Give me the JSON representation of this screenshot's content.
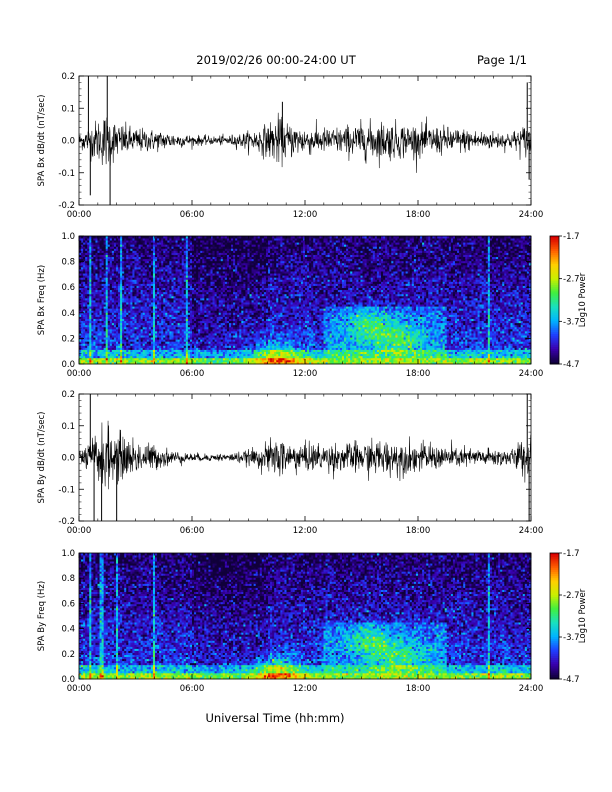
{
  "header": {
    "title": "2019/02/26  00:00-24:00 UT",
    "page": "Page 1/1"
  },
  "xlabel": "Universal Time (hh:mm)",
  "colors": {
    "trace": "#000000",
    "colormap": [
      "#10003a",
      "#3a00b0",
      "#1e40ff",
      "#00b4ff",
      "#18e0c0",
      "#40f040",
      "#c8f000",
      "#ffd000",
      "#ff6000",
      "#d80000"
    ]
  },
  "chart_data": [
    {
      "type": "line",
      "id": "bx-time-series",
      "ylabel": "SPA Bx dB/dt (nT/sec)",
      "xticks": [
        "00:00",
        "06:00",
        "12:00",
        "18:00",
        "24:00"
      ],
      "yticks": [
        "-0.2",
        "-0.1",
        "0.0",
        "0.1",
        "0.2"
      ],
      "xlim": [
        0,
        24
      ],
      "ylim": [
        -0.2,
        0.2
      ],
      "envelope": {
        "hours": [
          0,
          0.5,
          1,
          1.5,
          2,
          3,
          4,
          5,
          6,
          7,
          8,
          9,
          10,
          10.5,
          11,
          12,
          13,
          14,
          15,
          16,
          17,
          18,
          19,
          20,
          21,
          22,
          23,
          23.5,
          24
        ],
        "amplitude": [
          0.02,
          0.04,
          0.06,
          0.08,
          0.05,
          0.035,
          0.03,
          0.022,
          0.015,
          0.012,
          0.015,
          0.025,
          0.045,
          0.07,
          0.05,
          0.04,
          0.035,
          0.04,
          0.05,
          0.055,
          0.05,
          0.045,
          0.04,
          0.035,
          0.03,
          0.025,
          0.025,
          0.04,
          0.05
        ]
      },
      "spikes": [
        {
          "hour": 0.5,
          "value": 0.2
        },
        {
          "hour": 0.6,
          "value": -0.17
        },
        {
          "hour": 1.5,
          "value": 0.2
        },
        {
          "hour": 1.65,
          "value": -0.2
        },
        {
          "hour": 10.8,
          "value": 0.12
        },
        {
          "hour": 23.8,
          "value": 0.18
        },
        {
          "hour": 23.9,
          "value": -0.12
        }
      ]
    },
    {
      "type": "heatmap",
      "id": "bx-spectrogram",
      "ylabel": "SPA Bx Freq (Hz)",
      "colorbar_label": "Log10 Power",
      "colorbar_ticks": [
        "-1.7",
        "-2.7",
        "-3.7",
        "-4.7"
      ],
      "clim": [
        -4.7,
        -1.7
      ],
      "xticks": [
        "00:00",
        "06:00",
        "12:00",
        "18:00",
        "24:00"
      ],
      "yticks": [
        "0.0",
        "0.2",
        "0.4",
        "0.6",
        "0.8",
        "1.0"
      ],
      "xlim": [
        0,
        24
      ],
      "ylim": [
        0,
        1.0
      ],
      "vertical_lines_hours": [
        0.6,
        1.5,
        2.2,
        4.0,
        5.7,
        21.8
      ],
      "hotspots": [
        {
          "hour": 10.5,
          "freq": 0.05,
          "level": -2.3
        },
        {
          "hour": 15.5,
          "freq": 0.3,
          "level": -2.9
        },
        {
          "hour": 17.0,
          "freq": 0.18,
          "level": -3.0
        }
      ]
    },
    {
      "type": "line",
      "id": "by-time-series",
      "ylabel": "SPA By dB/dt (nT/sec)",
      "xticks": [
        "00:00",
        "06:00",
        "12:00",
        "18:00",
        "24:00"
      ],
      "yticks": [
        "-0.2",
        "-0.1",
        "0.0",
        "0.1",
        "0.2"
      ],
      "xlim": [
        0,
        24
      ],
      "ylim": [
        -0.2,
        0.2
      ],
      "envelope": {
        "hours": [
          0,
          0.5,
          1,
          1.5,
          2,
          3,
          4,
          5,
          6,
          7,
          8,
          9,
          10,
          10.5,
          11,
          12,
          13,
          14,
          15,
          16,
          17,
          18,
          19,
          20,
          21,
          22,
          23,
          23.5,
          24
        ],
        "amplitude": [
          0.02,
          0.04,
          0.08,
          0.09,
          0.07,
          0.05,
          0.035,
          0.02,
          0.012,
          0.01,
          0.012,
          0.02,
          0.04,
          0.06,
          0.045,
          0.04,
          0.04,
          0.04,
          0.045,
          0.05,
          0.05,
          0.04,
          0.035,
          0.03,
          0.025,
          0.025,
          0.025,
          0.05,
          0.07
        ]
      },
      "spikes": [
        {
          "hour": 0.6,
          "value": 0.2
        },
        {
          "hour": 0.8,
          "value": -0.2
        },
        {
          "hour": 1.2,
          "value": -0.2
        },
        {
          "hour": 2.0,
          "value": -0.2
        },
        {
          "hour": 23.8,
          "value": 0.2
        },
        {
          "hour": 23.9,
          "value": -0.2
        }
      ]
    },
    {
      "type": "heatmap",
      "id": "by-spectrogram",
      "ylabel": "SPA By Freq (Hz)",
      "colorbar_label": "Log10 Power",
      "colorbar_ticks": [
        "-1.7",
        "-2.7",
        "-3.7",
        "-4.7"
      ],
      "clim": [
        -4.7,
        -1.7
      ],
      "xticks": [
        "00:00",
        "06:00",
        "12:00",
        "18:00",
        "24:00"
      ],
      "yticks": [
        "0.0",
        "0.2",
        "0.4",
        "0.6",
        "0.8",
        "1.0"
      ],
      "xlim": [
        0,
        24
      ],
      "ylim": [
        0,
        1.0
      ],
      "vertical_lines_hours": [
        0.6,
        1.2,
        2.0,
        4.0,
        21.8
      ],
      "hotspots": [
        {
          "hour": 10.5,
          "freq": 0.05,
          "level": -2.4
        },
        {
          "hour": 15.5,
          "freq": 0.3,
          "level": -2.9
        },
        {
          "hour": 17.0,
          "freq": 0.18,
          "level": -3.0
        }
      ]
    }
  ]
}
